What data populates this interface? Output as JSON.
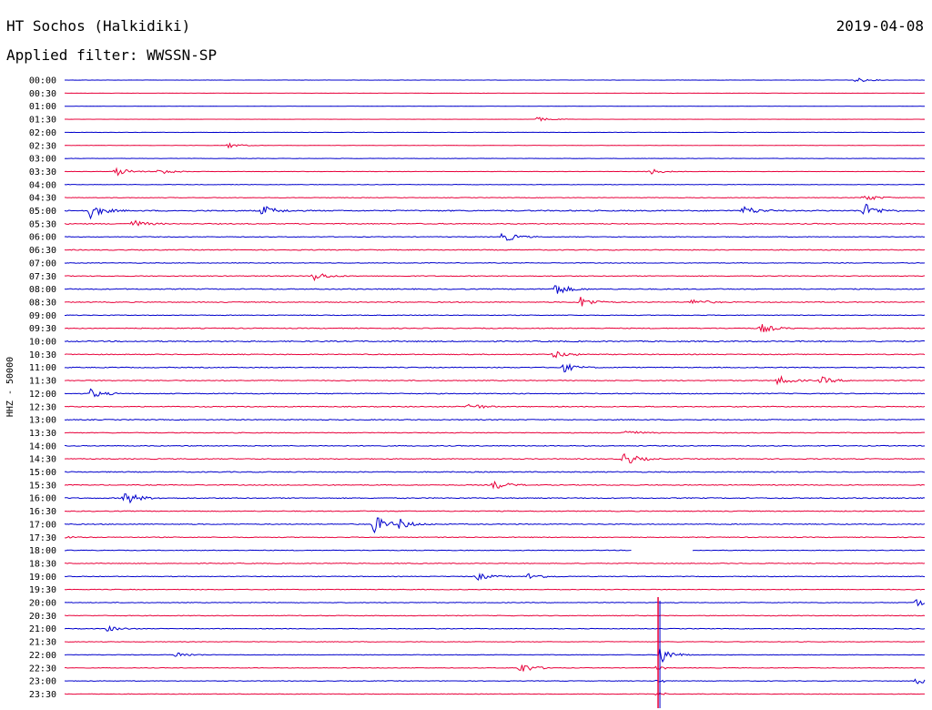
{
  "header": {
    "station": "HT Sochos (Halkidiki)",
    "date": "2019-04-08",
    "filter": "Applied filter: WWSSN-SP"
  },
  "chart_data": {
    "type": "line",
    "ylabel": "HHZ - 50000",
    "row_labels": [
      "00:00",
      "00:30",
      "01:00",
      "01:30",
      "02:00",
      "02:30",
      "03:00",
      "03:30",
      "04:00",
      "04:30",
      "05:00",
      "05:30",
      "06:00",
      "06:30",
      "07:00",
      "07:30",
      "08:00",
      "08:30",
      "09:00",
      "09:30",
      "10:00",
      "10:30",
      "11:00",
      "11:30",
      "12:00",
      "12:30",
      "13:00",
      "13:30",
      "14:00",
      "14:30",
      "15:00",
      "15:30",
      "16:00",
      "16:30",
      "17:00",
      "17:30",
      "18:00",
      "18:30",
      "19:00",
      "19:30",
      "20:00",
      "20:30",
      "21:00",
      "21:30",
      "22:00",
      "22:30",
      "23:00",
      "23:30"
    ],
    "colors": [
      "#0000cc",
      "#e8003a"
    ],
    "noise_level": [
      0.15,
      0.1,
      0.05,
      0.08,
      0.18,
      0.12,
      0.2,
      0.22,
      0.25,
      0.3,
      0.6,
      0.5,
      0.35,
      0.45,
      0.35,
      0.4,
      0.5,
      0.45,
      0.35,
      0.45,
      0.6,
      0.45,
      0.45,
      0.45,
      0.45,
      0.45,
      0.45,
      0.4,
      0.45,
      0.45,
      0.5,
      0.45,
      0.5,
      0.45,
      0.45,
      0.4,
      0.35,
      0.4,
      0.35,
      0.35,
      0.35,
      0.35,
      0.35,
      0.3,
      0.3,
      0.3,
      0.3,
      0.3
    ],
    "data_gap": {
      "row": 36,
      "from": 0.66,
      "to": 0.73
    },
    "events": [
      {
        "row": 0,
        "x": 0.92,
        "amp": 2.5
      },
      {
        "row": 3,
        "x": 0.55,
        "amp": 2.5
      },
      {
        "row": 5,
        "x": 0.19,
        "amp": 3
      },
      {
        "row": 7,
        "x": 0.06,
        "amp": 5
      },
      {
        "row": 7,
        "x": 0.11,
        "amp": 4
      },
      {
        "row": 7,
        "x": 0.68,
        "amp": 3.5
      },
      {
        "row": 9,
        "x": 0.93,
        "amp": 4
      },
      {
        "row": 10,
        "x": 0.03,
        "amp": 8
      },
      {
        "row": 10,
        "x": 0.23,
        "amp": 6
      },
      {
        "row": 10,
        "x": 0.93,
        "amp": 8
      },
      {
        "row": 10,
        "x": 0.79,
        "amp": 5
      },
      {
        "row": 11,
        "x": 0.08,
        "amp": 4
      },
      {
        "row": 12,
        "x": 0.51,
        "amp": 6
      },
      {
        "row": 15,
        "x": 0.29,
        "amp": 5
      },
      {
        "row": 16,
        "x": 0.57,
        "amp": 7
      },
      {
        "row": 17,
        "x": 0.6,
        "amp": 6
      },
      {
        "row": 17,
        "x": 0.73,
        "amp": 4
      },
      {
        "row": 19,
        "x": 0.81,
        "amp": 5
      },
      {
        "row": 21,
        "x": 0.57,
        "amp": 4
      },
      {
        "row": 22,
        "x": 0.58,
        "amp": 5
      },
      {
        "row": 23,
        "x": 0.83,
        "amp": 5
      },
      {
        "row": 23,
        "x": 0.88,
        "amp": 4
      },
      {
        "row": 24,
        "x": 0.03,
        "amp": 5
      },
      {
        "row": 25,
        "x": 0.47,
        "amp": 4
      },
      {
        "row": 27,
        "x": 0.65,
        "amp": 4
      },
      {
        "row": 29,
        "x": 0.65,
        "amp": 8
      },
      {
        "row": 31,
        "x": 0.5,
        "amp": 5
      },
      {
        "row": 32,
        "x": 0.07,
        "amp": 8
      },
      {
        "row": 34,
        "x": 0.36,
        "amp": 10
      },
      {
        "row": 34,
        "x": 0.39,
        "amp": 5
      },
      {
        "row": 35,
        "x": 0.0,
        "amp": 1
      },
      {
        "row": 38,
        "x": 0.48,
        "amp": 4
      },
      {
        "row": 38,
        "x": 0.54,
        "amp": 4
      },
      {
        "row": 40,
        "x": 0.99,
        "amp": 4
      },
      {
        "row": 42,
        "x": 0.05,
        "amp": 3
      },
      {
        "row": 44,
        "x": 0.13,
        "amp": 3
      },
      {
        "row": 45,
        "x": 0.53,
        "amp": 6
      },
      {
        "row": 46,
        "x": 0.99,
        "amp": 4
      }
    ],
    "major_event": {
      "x": 0.69,
      "start_row": 40,
      "peak_row": 44
    }
  }
}
